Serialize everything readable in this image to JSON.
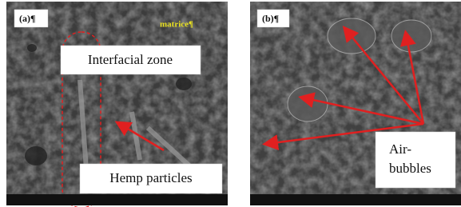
{
  "panels": [
    {
      "label": "(a)¶",
      "annotations": {
        "matrix": "matrice¶",
        "zone": "Interfacial zone",
        "particles": "Hemp particles"
      }
    },
    {
      "label": "(b)¶",
      "annotations": {
        "bubbles": [
          "Air-",
          "bubbles"
        ]
      }
    }
  ]
}
